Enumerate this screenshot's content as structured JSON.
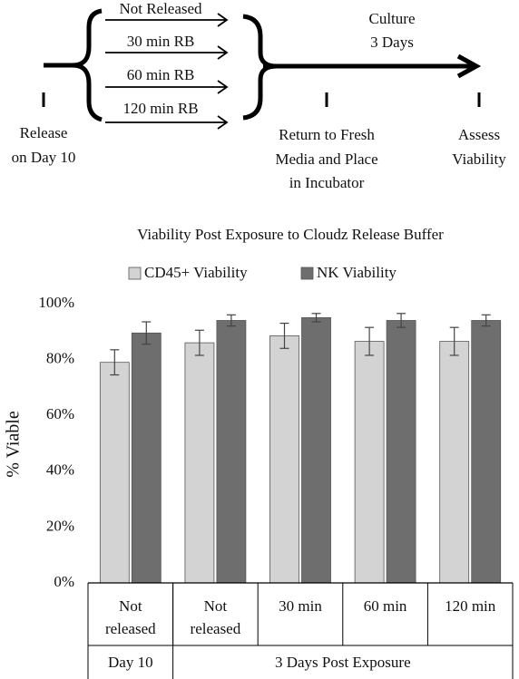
{
  "diagram": {
    "branches": [
      "Not Released",
      "30 min RB",
      "60 min RB",
      "120 min RB"
    ],
    "culture": [
      "Culture",
      "3 Days"
    ],
    "release": [
      "Release",
      "on Day 10"
    ],
    "return": [
      "Return to Fresh",
      "Media and Place",
      "in Incubator"
    ],
    "assess": [
      "Assess",
      "Viability"
    ]
  },
  "chart_data": {
    "type": "bar",
    "title": "Viability Post Exposure to Cloudz Release Buffer",
    "y_label": "% Viable",
    "categories": [
      "Not released",
      "Not released",
      "30 min",
      "60 min",
      "120 min"
    ],
    "groups": [
      {
        "label": "Day 10",
        "size": 1
      },
      {
        "label": "3 Days Post Exposure",
        "size": 4
      }
    ],
    "series": [
      {
        "name": "CD45+ Viability",
        "color": "#d3d3d3",
        "values": [
          79,
          86,
          88.5,
          86.5,
          86.5
        ],
        "errors": [
          4.5,
          4.5,
          4.5,
          5,
          5
        ]
      },
      {
        "name": "NK Viability",
        "color": "#6e6e6e",
        "values": [
          89.5,
          94,
          95,
          94,
          94
        ],
        "errors": [
          4,
          2,
          1.5,
          2.5,
          2
        ]
      }
    ],
    "ylim": [
      0,
      100
    ],
    "yticks": [
      {
        "value": 0,
        "label": "0%"
      },
      {
        "value": 20,
        "label": "20%"
      },
      {
        "value": 40,
        "label": "40%"
      },
      {
        "value": 60,
        "label": "60%"
      },
      {
        "value": 80,
        "label": "80%"
      },
      {
        "value": 100,
        "label": "100%"
      }
    ],
    "grid": false,
    "legend": "top"
  }
}
